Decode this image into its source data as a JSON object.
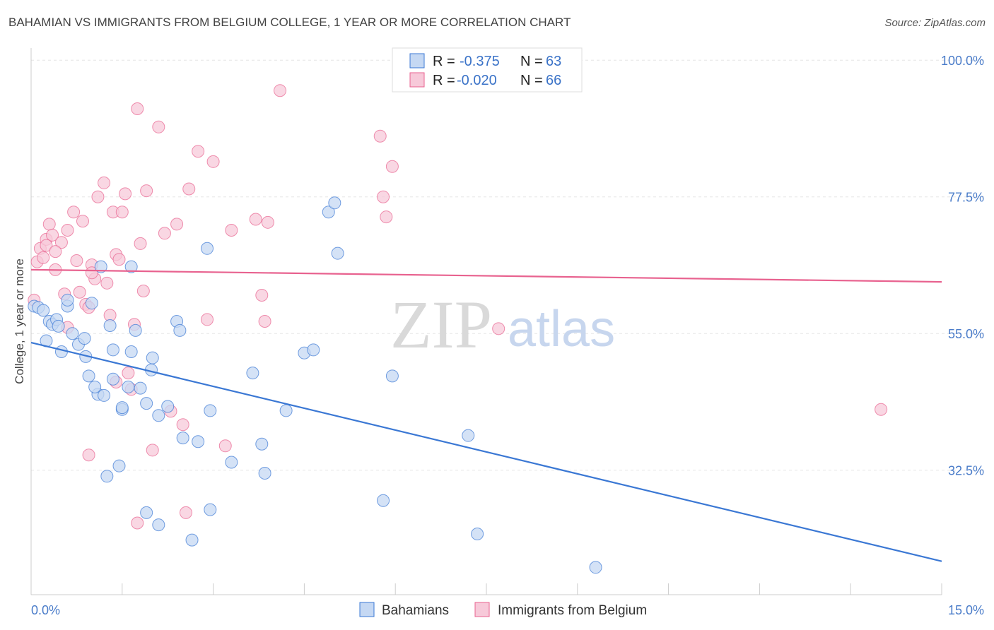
{
  "header": {
    "title": "BAHAMIAN VS IMMIGRANTS FROM BELGIUM COLLEGE, 1 YEAR OR MORE CORRELATION CHART",
    "source": "Source: ZipAtlas.com"
  },
  "watermark": {
    "zip": "ZIP",
    "atlas": "atlas"
  },
  "legend": {
    "r_label": "R =",
    "n_label": "N =",
    "rows": [
      {
        "r": "-0.375",
        "n": "63"
      },
      {
        "r": "-0.020",
        "n": "66"
      }
    ]
  },
  "bottom_legend": {
    "blue": "Bahamians",
    "pink": "Immigrants from Belgium"
  },
  "chart_data": {
    "type": "scatter",
    "title": "BAHAMIAN VS IMMIGRANTS FROM BELGIUM COLLEGE, 1 YEAR OR MORE CORRELATION CHART",
    "xlabel": "",
    "ylabel": "College, 1 year or more",
    "xlim": [
      0,
      15
    ],
    "ylim": [
      12,
      102
    ],
    "x_tick_labels": [
      "0.0%",
      "15.0%"
    ],
    "y_ticks": [
      100,
      77.5,
      55,
      32.5
    ],
    "y_tick_labels": [
      "100.0%",
      "77.5%",
      "55.0%",
      "32.5%"
    ],
    "grid": true,
    "legend_position": "top-center",
    "colors": {
      "blue": "#3b78d4",
      "pink": "#e8628f",
      "blue_fill": "#c5d8f3",
      "pink_fill": "#f7c9d9"
    },
    "series": [
      {
        "name": "Bahamians",
        "color": "blue",
        "trend": [
          [
            0,
            53.5
          ],
          [
            15,
            17.5
          ]
        ],
        "points": [
          [
            0.05,
            59.5
          ],
          [
            0.12,
            59.3
          ],
          [
            0.2,
            58.8
          ],
          [
            0.3,
            57.0
          ],
          [
            0.35,
            56.5
          ],
          [
            0.42,
            57.3
          ],
          [
            0.5,
            52.0
          ],
          [
            0.45,
            56.2
          ],
          [
            0.6,
            59.5
          ],
          [
            0.6,
            60.5
          ],
          [
            0.68,
            55.0
          ],
          [
            0.78,
            53.2
          ],
          [
            0.88,
            54.2
          ],
          [
            0.9,
            51.2
          ],
          [
            0.95,
            48.0
          ],
          [
            1.1,
            45.0
          ],
          [
            1.05,
            46.2
          ],
          [
            1.2,
            44.8
          ],
          [
            1.15,
            66.0
          ],
          [
            1.3,
            56.3
          ],
          [
            1.35,
            47.5
          ],
          [
            1.35,
            52.3
          ],
          [
            1.5,
            42.5
          ],
          [
            1.5,
            42.8
          ],
          [
            1.6,
            46.2
          ],
          [
            1.65,
            66.0
          ],
          [
            1.72,
            55.5
          ],
          [
            1.8,
            46.0
          ],
          [
            1.9,
            43.5
          ],
          [
            1.98,
            49.0
          ],
          [
            2.0,
            51.0
          ],
          [
            2.1,
            41.5
          ],
          [
            2.25,
            43.0
          ],
          [
            2.4,
            57.0
          ],
          [
            2.45,
            55.5
          ],
          [
            2.5,
            37.8
          ],
          [
            2.75,
            37.2
          ],
          [
            2.9,
            69.0
          ],
          [
            2.95,
            42.3
          ],
          [
            3.3,
            33.8
          ],
          [
            3.65,
            48.5
          ],
          [
            3.8,
            36.8
          ],
          [
            3.85,
            32.0
          ],
          [
            4.2,
            42.3
          ],
          [
            4.5,
            51.8
          ],
          [
            4.65,
            52.3
          ],
          [
            4.9,
            75.0
          ],
          [
            5.0,
            76.5
          ],
          [
            5.05,
            68.2
          ],
          [
            5.8,
            27.5
          ],
          [
            5.95,
            48.0
          ],
          [
            7.2,
            38.2
          ],
          [
            7.35,
            22.0
          ],
          [
            9.3,
            16.5
          ],
          [
            1.25,
            31.5
          ],
          [
            1.45,
            33.2
          ],
          [
            1.9,
            25.5
          ],
          [
            2.1,
            23.5
          ],
          [
            2.65,
            21.0
          ],
          [
            2.95,
            26.0
          ],
          [
            1.0,
            60.0
          ],
          [
            0.25,
            53.8
          ],
          [
            1.65,
            52.0
          ]
        ]
      },
      {
        "name": "Immigrants from Belgium",
        "color": "pink",
        "trend": [
          [
            0,
            65.5
          ],
          [
            15,
            63.5
          ]
        ],
        "points": [
          [
            0.05,
            60.5
          ],
          [
            0.1,
            66.8
          ],
          [
            0.15,
            69.0
          ],
          [
            0.2,
            67.5
          ],
          [
            0.25,
            70.5
          ],
          [
            0.3,
            73.0
          ],
          [
            0.35,
            71.2
          ],
          [
            0.4,
            65.5
          ],
          [
            0.5,
            70.0
          ],
          [
            0.55,
            61.5
          ],
          [
            0.6,
            72.0
          ],
          [
            0.7,
            75.0
          ],
          [
            0.75,
            67.0
          ],
          [
            0.8,
            61.8
          ],
          [
            0.85,
            73.5
          ],
          [
            0.9,
            59.8
          ],
          [
            0.95,
            59.3
          ],
          [
            1.0,
            66.3
          ],
          [
            1.05,
            64.0
          ],
          [
            1.1,
            77.5
          ],
          [
            1.2,
            79.8
          ],
          [
            1.25,
            63.3
          ],
          [
            1.3,
            58.0
          ],
          [
            1.35,
            75.0
          ],
          [
            1.4,
            68.0
          ],
          [
            1.45,
            67.2
          ],
          [
            1.5,
            75.0
          ],
          [
            1.55,
            78.0
          ],
          [
            1.6,
            48.5
          ],
          [
            1.65,
            45.8
          ],
          [
            1.7,
            56.5
          ],
          [
            1.75,
            92.0
          ],
          [
            1.8,
            69.8
          ],
          [
            1.85,
            62.0
          ],
          [
            1.9,
            78.5
          ],
          [
            2.0,
            35.8
          ],
          [
            2.1,
            89.0
          ],
          [
            2.2,
            71.5
          ],
          [
            2.3,
            42.2
          ],
          [
            2.4,
            73.0
          ],
          [
            2.5,
            40.0
          ],
          [
            2.6,
            78.8
          ],
          [
            2.75,
            85.0
          ],
          [
            2.9,
            57.3
          ],
          [
            3.0,
            83.3
          ],
          [
            3.2,
            36.5
          ],
          [
            3.3,
            72.0
          ],
          [
            3.7,
            73.8
          ],
          [
            3.8,
            61.3
          ],
          [
            3.85,
            57.0
          ],
          [
            3.9,
            73.3
          ],
          [
            4.1,
            95.0
          ],
          [
            5.75,
            87.5
          ],
          [
            5.8,
            77.5
          ],
          [
            5.85,
            74.2
          ],
          [
            5.95,
            82.5
          ],
          [
            7.7,
            55.8
          ],
          [
            14.0,
            42.5
          ],
          [
            0.95,
            35.0
          ],
          [
            1.75,
            23.8
          ],
          [
            2.55,
            25.5
          ],
          [
            1.4,
            47.0
          ],
          [
            0.6,
            56.0
          ],
          [
            0.25,
            69.5
          ],
          [
            0.4,
            68.5
          ],
          [
            1.0,
            65.0
          ]
        ]
      }
    ]
  }
}
